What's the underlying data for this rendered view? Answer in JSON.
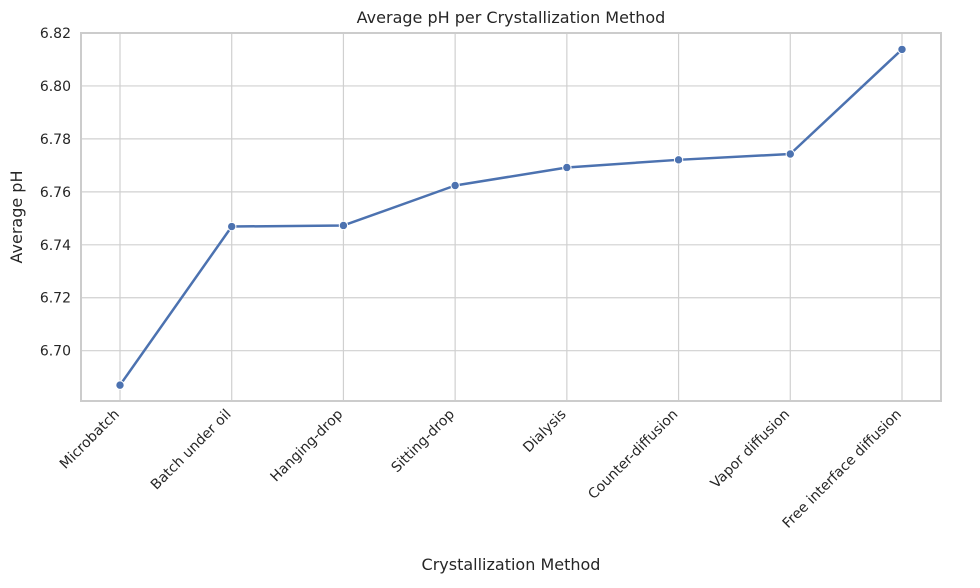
{
  "chart_data": {
    "type": "line",
    "title": "Average pH per Crystallization Method",
    "xlabel": "Crystallization Method",
    "ylabel": "Average pH",
    "categories": [
      "Microbatch",
      "Batch under oil",
      "Hanging-drop",
      "Sitting-drop",
      "Dialysis",
      "Counter-diffusion",
      "Vapor diffusion",
      "Free interface diffusion"
    ],
    "values": [
      6.687,
      6.7469,
      6.7473,
      6.7624,
      6.7692,
      6.7721,
      6.7743,
      6.8138
    ],
    "ylim": [
      6.681,
      6.82
    ],
    "yticks": [
      6.7,
      6.72,
      6.74,
      6.76,
      6.78,
      6.8,
      6.82
    ],
    "ytick_labels": [
      "6.70",
      "6.72",
      "6.74",
      "6.76",
      "6.78",
      "6.80",
      "6.82"
    ],
    "grid": true,
    "legend": "none",
    "x_tick_rotation": 45,
    "colors": {
      "line": "#4c72b0",
      "grid": "#d0d0d0",
      "spine": "#cccccc",
      "text": "#262626"
    }
  }
}
